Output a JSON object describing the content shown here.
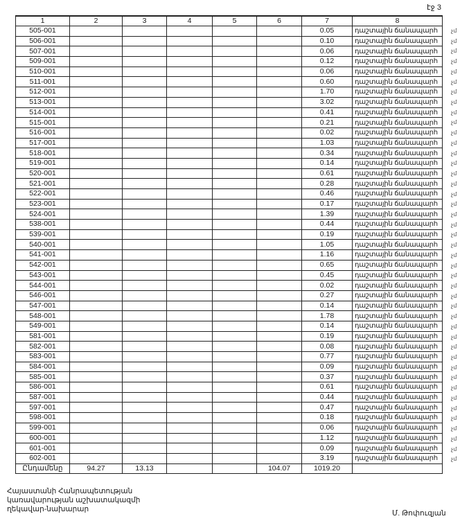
{
  "page_label": "էջ 3",
  "table": {
    "headers": [
      "1",
      "2",
      "3",
      "4",
      "5",
      "6",
      "7",
      "8"
    ],
    "rows": [
      {
        "code": "505-001",
        "area": "0.05",
        "type": "դաշտային ճանապարհ"
      },
      {
        "code": "506-001",
        "area": "0.10",
        "type": "դաշտային ճանապարհ"
      },
      {
        "code": "507-001",
        "area": "0.06",
        "type": "դաշտային ճանապարհ"
      },
      {
        "code": "509-001",
        "area": "0.12",
        "type": "դաշտային ճանապարհ"
      },
      {
        "code": "510-001",
        "area": "0.06",
        "type": "դաշտային ճանապարհ"
      },
      {
        "code": "511-001",
        "area": "0.60",
        "type": "դաշտային ճանապարհ"
      },
      {
        "code": "512-001",
        "area": "1.70",
        "type": "դաշտային ճանապարհ"
      },
      {
        "code": "513-001",
        "area": "3.02",
        "type": "դաշտային ճանապարհ"
      },
      {
        "code": "514-001",
        "area": "0.41",
        "type": "դաշտային ճանապարհ"
      },
      {
        "code": "515-001",
        "area": "0.21",
        "type": "դաշտային ճանապարհ"
      },
      {
        "code": "516-001",
        "area": "0.02",
        "type": "դաշտային ճանապարհ"
      },
      {
        "code": "517-001",
        "area": "1.03",
        "type": "դաշտային ճանապարհ"
      },
      {
        "code": "518-001",
        "area": "0.34",
        "type": "դաշտային ճանապարհ"
      },
      {
        "code": "519-001",
        "area": "0.14",
        "type": "դաշտային ճանապարհ"
      },
      {
        "code": "520-001",
        "area": "0.61",
        "type": "դաշտային ճանապարհ"
      },
      {
        "code": "521-001",
        "area": "0.28",
        "type": "դաշտային ճանապարհ"
      },
      {
        "code": "522-001",
        "area": "0.46",
        "type": "դաշտային ճանապարհ"
      },
      {
        "code": "523-001",
        "area": "0.17",
        "type": "դաշտային ճանապարհ"
      },
      {
        "code": "524-001",
        "area": "1.39",
        "type": "դաշտային ճանապարհ"
      },
      {
        "code": "538-001",
        "area": "0.44",
        "type": "դաշտային ճանապարհ"
      },
      {
        "code": "539-001",
        "area": "0.19",
        "type": "դաշտային ճանապարհ"
      },
      {
        "code": "540-001",
        "area": "1.05",
        "type": "դաշտային ճանապարհ"
      },
      {
        "code": "541-001",
        "area": "1.16",
        "type": "դաշտային ճանապարհ"
      },
      {
        "code": "542-001",
        "area": "0.65",
        "type": "դաշտային ճանապարհ"
      },
      {
        "code": "543-001",
        "area": "0.45",
        "type": "դաշտային ճանապարհ"
      },
      {
        "code": "544-001",
        "area": "0.02",
        "type": "դաշտային ճանապարհ"
      },
      {
        "code": "546-001",
        "area": "0.27",
        "type": "դաշտային ճանապարհ"
      },
      {
        "code": "547-001",
        "area": "0.14",
        "type": "դաշտային ճանապարհ"
      },
      {
        "code": "548-001",
        "area": "1.78",
        "type": "դաշտային ճանապարհ"
      },
      {
        "code": "549-001",
        "area": "0.14",
        "type": "դաշտային ճանապարհ"
      },
      {
        "code": "581-001",
        "area": "0.19",
        "type": "դաշտային ճանապարհ"
      },
      {
        "code": "582-001",
        "area": "0.08",
        "type": "դաշտային ճանապարհ"
      },
      {
        "code": "583-001",
        "area": "0.77",
        "type": "դաշտային ճանապարհ"
      },
      {
        "code": "584-001",
        "area": "0.09",
        "type": "դաշտային ճանապարհ"
      },
      {
        "code": "585-001",
        "area": "0.37",
        "type": "դաշտային ճանապարհ"
      },
      {
        "code": "586-001",
        "area": "0.61",
        "type": "դաշտային ճանապարհ"
      },
      {
        "code": "587-001",
        "area": "0.44",
        "type": "դաշտային ճանապարհ"
      },
      {
        "code": "597-001",
        "area": "0.47",
        "type": "դաշտային ճանապարհ"
      },
      {
        "code": "598-001",
        "area": "0.18",
        "type": "դաշտային ճանապարհ"
      },
      {
        "code": "599-001",
        "area": "0.06",
        "type": "դաշտային ճանապարհ"
      },
      {
        "code": "600-001",
        "area": "1.12",
        "type": "դաշտային ճանապարհ"
      },
      {
        "code": "601-001",
        "area": "0.09",
        "type": "դաշտային ճանապարհ"
      },
      {
        "code": "602-001",
        "area": "3.19",
        "type": "դաշտային ճանապարհ"
      }
    ],
    "row_margin_mark": "չմ",
    "total": {
      "label": "Ընդամենը",
      "col2": "94.27",
      "col3": "13.13",
      "col4": "",
      "col5": "",
      "col6": "104.07",
      "col7": "1019.20",
      "col8": ""
    }
  },
  "signature": {
    "lines": [
      "Հայաստանի Հանրապետության",
      "կառավարության աշխատակազմի",
      "ղեկավար-նախարար"
    ],
    "name": "Մ. Թոփուզյան"
  }
}
